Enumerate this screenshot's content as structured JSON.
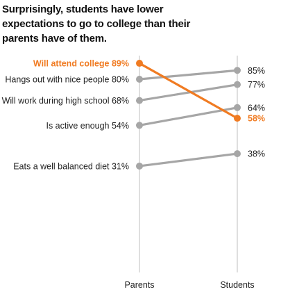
{
  "chart_data": {
    "type": "line",
    "subtype": "slope",
    "title": "Surprisingly, students have lower expectations to go to college than their parents have of them.",
    "categories": [
      "Parents",
      "Students"
    ],
    "ylim": [
      20,
      95
    ],
    "grid": false,
    "legend": "none",
    "series": [
      {
        "name": "Will attend college",
        "values": [
          89,
          58
        ],
        "highlight": true,
        "left_label": "Will attend college 89%",
        "right_label": "58%"
      },
      {
        "name": "Hangs out with nice people",
        "values": [
          80,
          85
        ],
        "highlight": false,
        "left_label": "Hangs out with nice people 80%",
        "right_label": "85%"
      },
      {
        "name": "Will work during high school",
        "values": [
          68,
          77
        ],
        "highlight": false,
        "left_label": "Will work during high school 68%",
        "right_label": "77%"
      },
      {
        "name": "Is active enough",
        "values": [
          54,
          64
        ],
        "highlight": false,
        "left_label": "Is active enough 54%",
        "right_label": "64%"
      },
      {
        "name": "Eats a well balanced diet",
        "values": [
          31,
          38
        ],
        "highlight": false,
        "left_label": "Eats a well balanced diet 31%",
        "right_label": "38%"
      }
    ],
    "colors": {
      "highlight": "#f07b22",
      "muted": "#a6a6a6",
      "axis": "#bfbfbf",
      "text": "#222222"
    }
  }
}
